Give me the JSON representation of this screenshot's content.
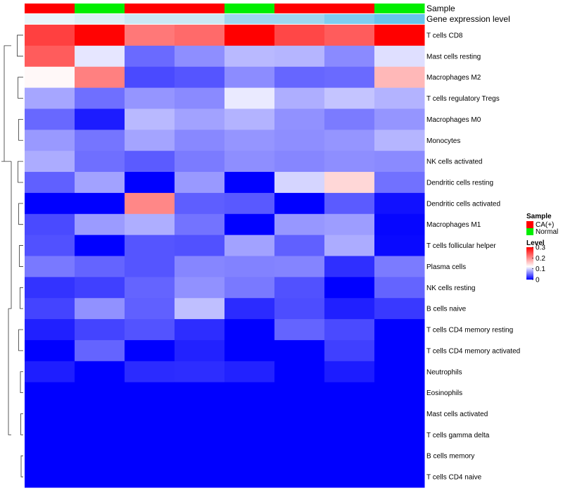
{
  "chart_data": {
    "type": "heatmap",
    "title": "",
    "annotation_tracks": [
      {
        "label": "Sample",
        "values": [
          "CA(+)",
          "Normal",
          "CA(+)",
          "CA(+)",
          "Normal",
          "CA(+)",
          "CA(+)",
          "Normal"
        ],
        "colors": {
          "CA(+)": "#ff0000",
          "Normal": "#00ee00"
        }
      },
      {
        "label": "Gene expression level",
        "values": [
          1,
          2,
          3,
          3,
          4,
          4,
          5,
          6
        ],
        "colors": [
          "#ffffff",
          "#e9f5fa",
          "#dceff7",
          "#cbe8f4",
          "#9fd6f0",
          "#7fcef0",
          "#66c5ec"
        ]
      }
    ],
    "rows": [
      "T cells CD8",
      "Mast cells resting",
      "Macrophages M2",
      "T cells regulatory  Tregs",
      "Macrophages M0",
      "Monocytes",
      "NK cells activated",
      "Dendritic cells resting",
      "Dendritic cells activated",
      "Macrophages M1",
      "T cells follicular helper",
      "Plasma cells",
      "NK cells resting",
      "B cells naive",
      "T cells CD4 memory resting",
      "T cells CD4 memory activated",
      "Neutrophils",
      "Eosinophils",
      "Mast cells activated",
      "T cells gamma delta",
      "B cells memory",
      "T cells CD4 naive"
    ],
    "values": [
      [
        0.255,
        0.298,
        0.215,
        0.225,
        0.3,
        0.25,
        0.235,
        0.3
      ],
      [
        0.235,
        0.108,
        0.05,
        0.067,
        0.087,
        0.085,
        0.065,
        0.105
      ],
      [
        0.125,
        0.21,
        0.035,
        0.04,
        0.066,
        0.048,
        0.05,
        0.17
      ],
      [
        0.078,
        0.052,
        0.07,
        0.065,
        0.11,
        0.082,
        0.092,
        0.084
      ],
      [
        0.049,
        0.013,
        0.087,
        0.076,
        0.084,
        0.068,
        0.058,
        0.07
      ],
      [
        0.072,
        0.055,
        0.077,
        0.064,
        0.07,
        0.067,
        0.07,
        0.085
      ],
      [
        0.081,
        0.052,
        0.043,
        0.058,
        0.067,
        0.063,
        0.067,
        0.065
      ],
      [
        0.045,
        0.076,
        0.0,
        0.072,
        0.0,
        0.1,
        0.148,
        0.053
      ],
      [
        0.0,
        0.0,
        0.205,
        0.044,
        0.042,
        0.0,
        0.043,
        0.008
      ],
      [
        0.035,
        0.073,
        0.082,
        0.054,
        0.0,
        0.071,
        0.074,
        0.003
      ],
      [
        0.038,
        0.0,
        0.04,
        0.038,
        0.076,
        0.045,
        0.081,
        0.004
      ],
      [
        0.057,
        0.047,
        0.04,
        0.063,
        0.061,
        0.062,
        0.022,
        0.058
      ],
      [
        0.024,
        0.03,
        0.047,
        0.068,
        0.057,
        0.038,
        0.0,
        0.047
      ],
      [
        0.032,
        0.068,
        0.045,
        0.09,
        0.02,
        0.036,
        0.015,
        0.027
      ],
      [
        0.015,
        0.032,
        0.039,
        0.021,
        0.0,
        0.047,
        0.035,
        0.0
      ],
      [
        0.0,
        0.047,
        0.0,
        0.016,
        0.0,
        0.0,
        0.03,
        0.0
      ],
      [
        0.014,
        0.0,
        0.02,
        0.021,
        0.016,
        0.0,
        0.013,
        0.0
      ],
      [
        0.0,
        0.0,
        0.0,
        0.0,
        0.0,
        0.0,
        0.0,
        0.0
      ],
      [
        0.0,
        0.0,
        0.0,
        0.0,
        0.0,
        0.0,
        0.0,
        0.0
      ],
      [
        0.0,
        0.0,
        0.0,
        0.0,
        0.0,
        0.0,
        0.0,
        0.0
      ],
      [
        0.0,
        0.0,
        0.0,
        0.0,
        0.0,
        0.0,
        0.0,
        0.0
      ],
      [
        0.0,
        0.0,
        0.0,
        0.0,
        0.0,
        0.0,
        0.0,
        0.0
      ]
    ],
    "color_scale": {
      "low": "#0000ff",
      "mid": "#ffffff",
      "high": "#ff0000",
      "range": [
        0,
        0.3
      ],
      "mid_value": 0.12
    },
    "legend": {
      "sample_title": "Sample",
      "sample_entries": [
        {
          "label": "CA(+)",
          "color": "#ff0000"
        },
        {
          "label": "Normal",
          "color": "#00ee00"
        }
      ],
      "level_title": "Level",
      "level_ticks": [
        {
          "label": "0.3",
          "value": 0.3
        },
        {
          "label": "0.2",
          "value": 0.2
        },
        {
          "label": "0.1",
          "value": 0.1
        },
        {
          "label": "0",
          "value": 0
        }
      ]
    },
    "dendrogram": "row clustering dendrogram on left"
  }
}
